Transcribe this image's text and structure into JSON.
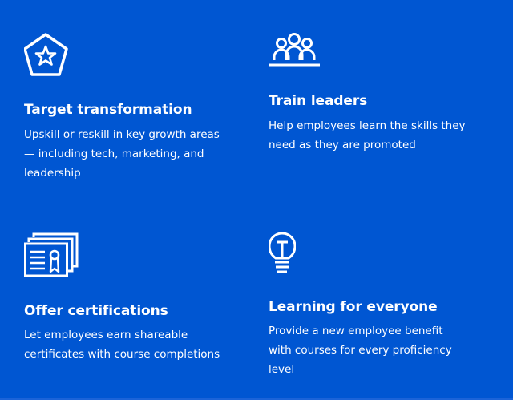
{
  "features": [
    {
      "icon": "pentagon-star-icon",
      "title": "Target transformation",
      "description": "Upskill or reskill in key growth areas — including tech, marketing, and leadership"
    },
    {
      "icon": "group-people-icon",
      "title": "Train leaders",
      "description": "Help employees learn the skills they need as they are promoted"
    },
    {
      "icon": "certificates-icon",
      "title": "Offer certifications",
      "description": "Let employees earn shareable certificates with course completions"
    },
    {
      "icon": "lightbulb-icon",
      "title": "Learning for everyone",
      "description": "Provide a new employee benefit with courses for every proficiency level"
    }
  ],
  "colors": {
    "background": "#0056d2",
    "foreground": "#ffffff"
  }
}
